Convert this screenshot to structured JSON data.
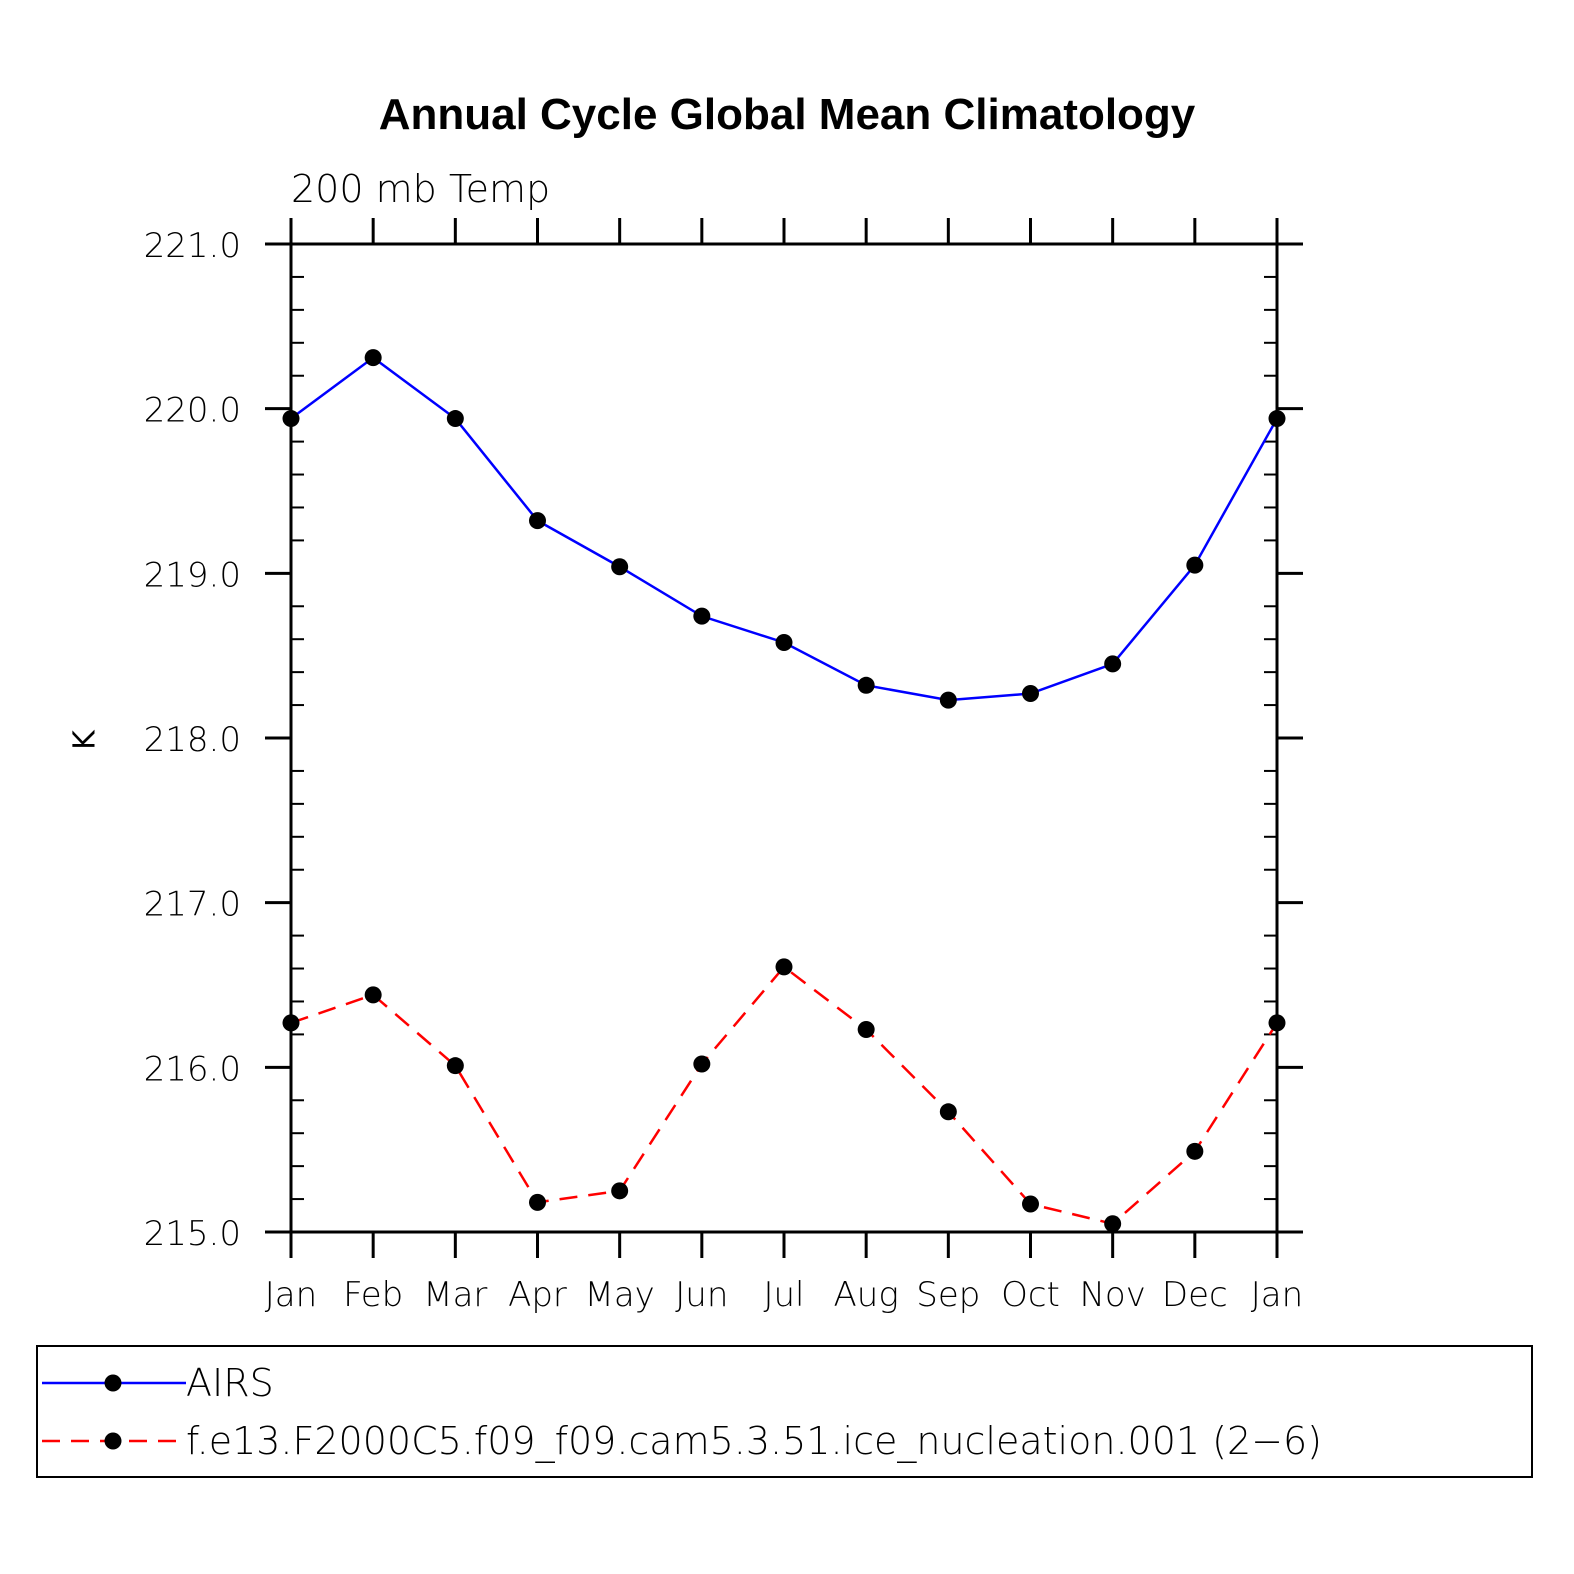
{
  "chart_data": {
    "type": "line",
    "title": "Annual Cycle Global Mean Climatology",
    "subtitle": "200 mb Temp",
    "ylabel": "K",
    "xlabel": "",
    "categories": [
      "Jan",
      "Feb",
      "Mar",
      "Apr",
      "May",
      "Jun",
      "Jul",
      "Aug",
      "Sep",
      "Oct",
      "Nov",
      "Dec",
      "Jan"
    ],
    "ylim": [
      215.0,
      221.0
    ],
    "yticks": [
      "215.0",
      "216.0",
      "217.0",
      "218.0",
      "219.0",
      "220.0",
      "221.0"
    ],
    "series": [
      {
        "name": "AIRS",
        "color": "#0000ff",
        "dash": "solid",
        "values": [
          219.94,
          220.31,
          219.94,
          219.32,
          219.04,
          218.74,
          218.58,
          218.32,
          218.23,
          218.27,
          218.45,
          219.05,
          219.94
        ]
      },
      {
        "name": "f.e13.F2000C5.f09_f09.cam5.3.51.ice_nucleation.001 (2−6)",
        "color": "#ff0000",
        "dash": "dashed",
        "values": [
          216.27,
          216.44,
          216.01,
          215.18,
          215.25,
          216.02,
          216.61,
          216.23,
          215.73,
          215.17,
          215.05,
          215.49,
          216.27
        ]
      }
    ],
    "legend_position": "bottom"
  }
}
